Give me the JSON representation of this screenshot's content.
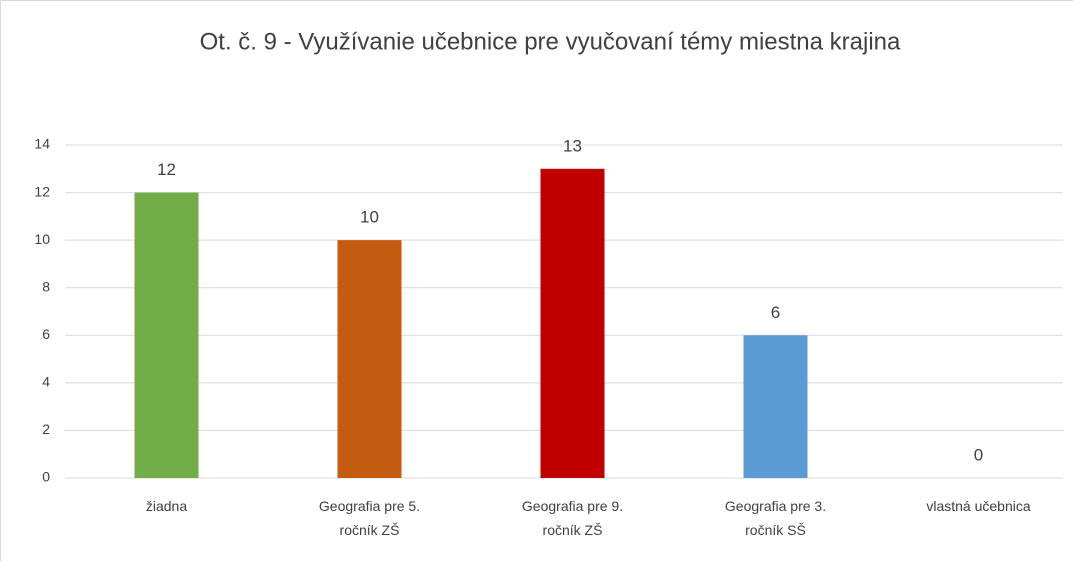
{
  "chart_data": {
    "type": "bar",
    "title": "Ot. č. 9 - Využívanie učebnice pre vyučovaní témy miestna krajina",
    "categories": [
      "žiadna",
      "Geografia pre 5. ročník ZŠ",
      "Geografia pre 9. ročník ZŠ",
      "Geografia pre 3. ročník SŠ",
      "vlastná učebnica"
    ],
    "values": [
      12,
      10,
      13,
      6,
      0
    ],
    "colors": [
      "#70ad47",
      "#c55a11",
      "#c00000",
      "#5b9bd5",
      "#7f7f7f"
    ],
    "ylim": [
      0,
      14
    ],
    "yticks": [
      0,
      2,
      4,
      6,
      8,
      10,
      12,
      14
    ],
    "grid": true
  }
}
